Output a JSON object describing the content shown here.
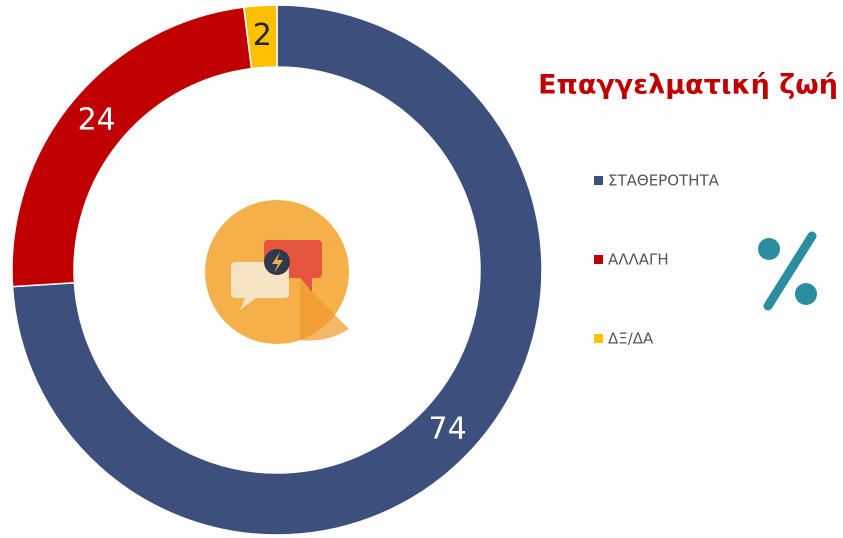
{
  "chart_data": {
    "type": "donut",
    "title": "Επαγγελματική ζωή",
    "categories": [
      "ΣΤΑΘΕΡΟΤΗΤΑ",
      "ΑΛΛΑΓΗ",
      "ΔΞ/ΔΑ"
    ],
    "values": [
      74,
      24,
      2
    ],
    "colors": [
      "#3d4f7c",
      "#c00000",
      "#ffc000"
    ],
    "legend": "right"
  }
}
